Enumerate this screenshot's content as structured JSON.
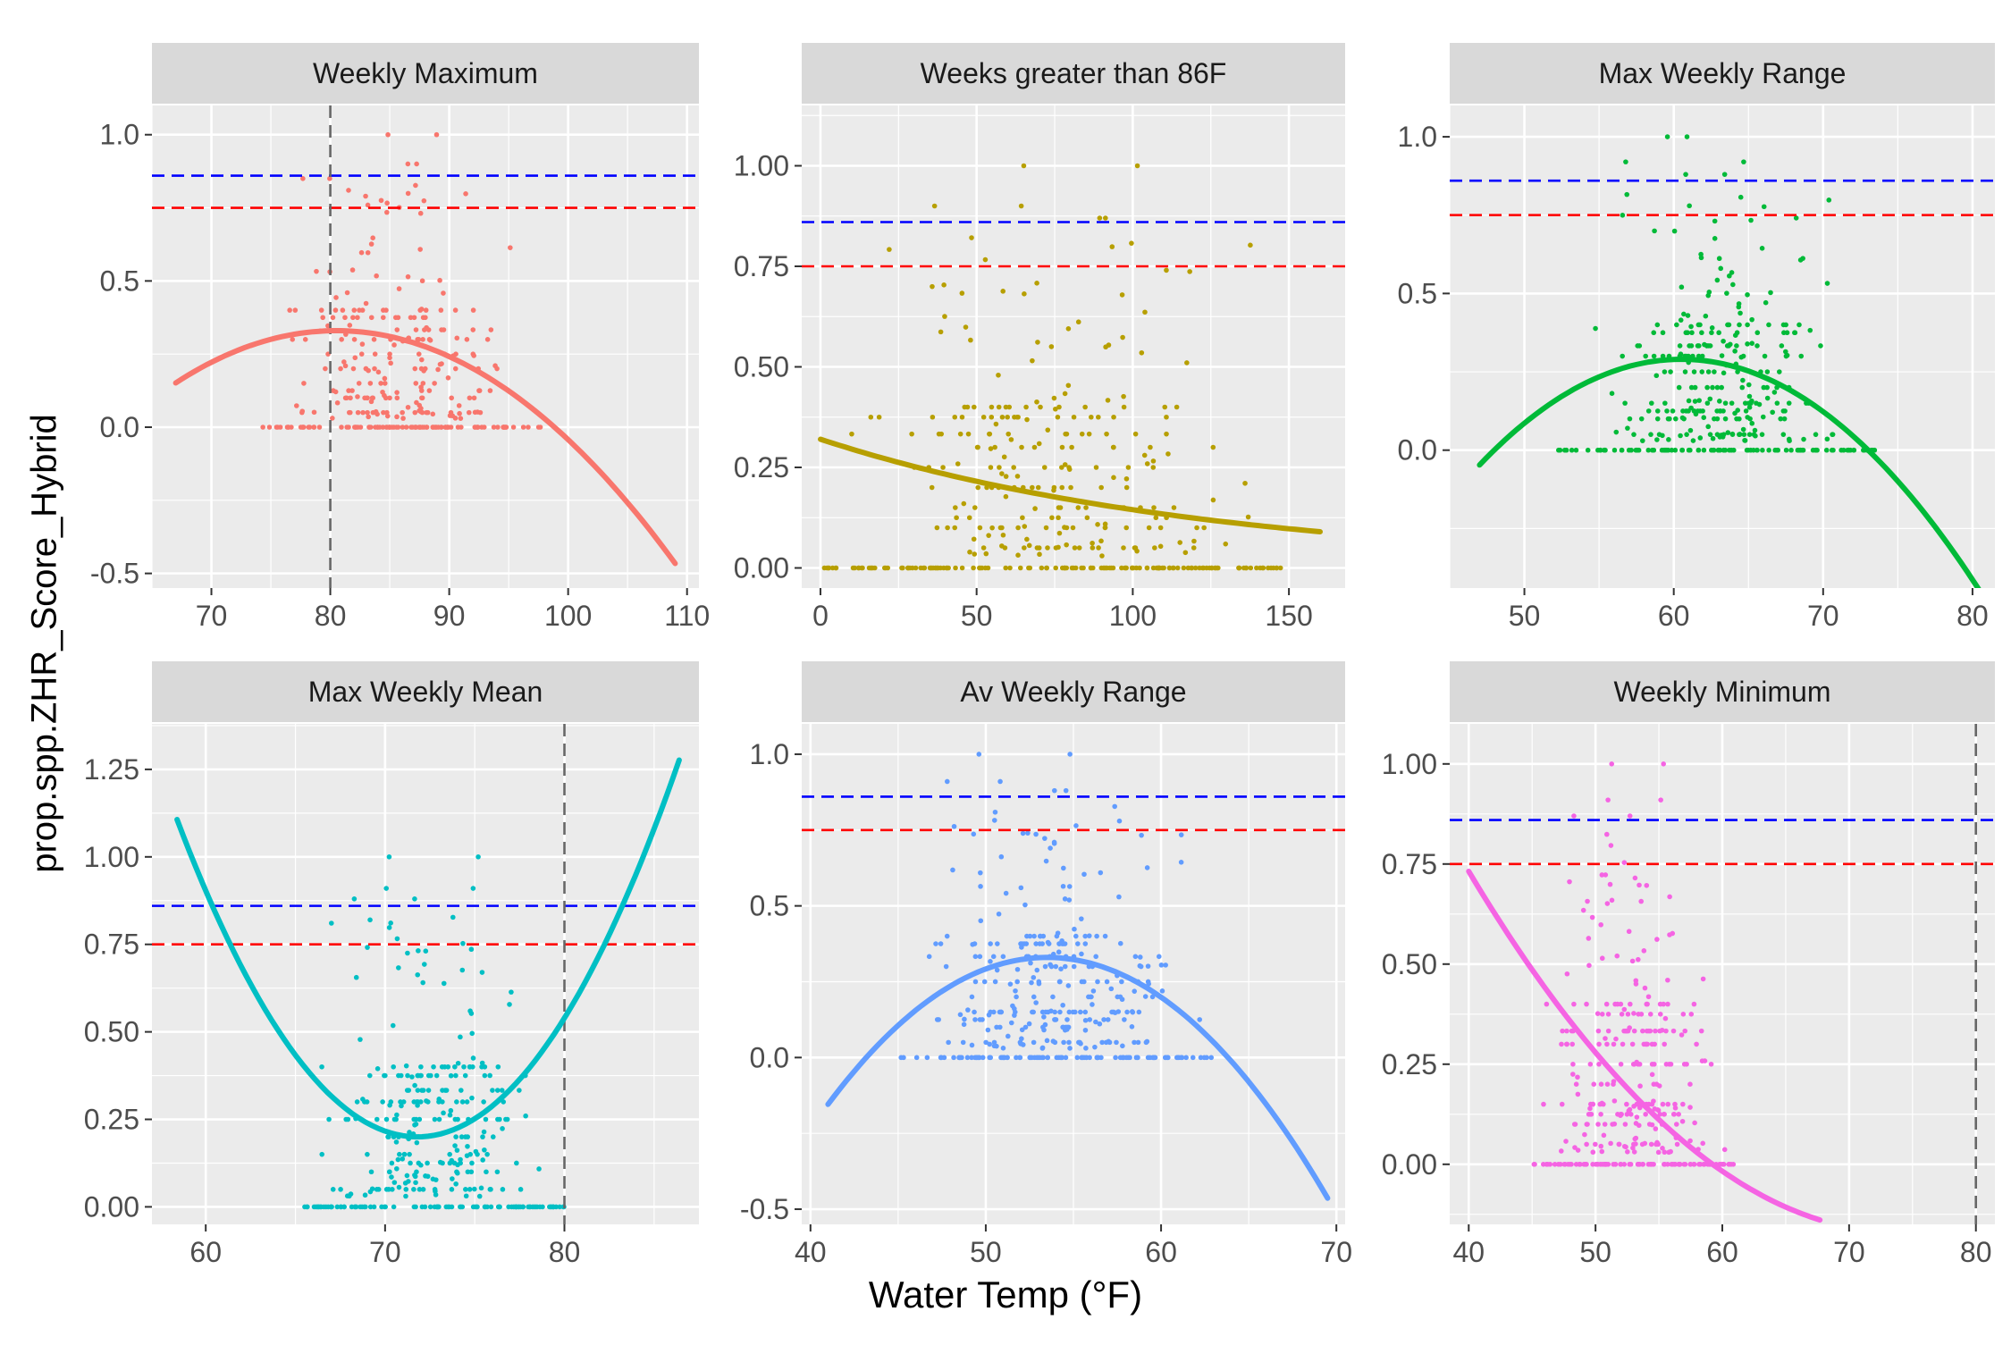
{
  "figure": {
    "xlabel": "Water Temp (°F)",
    "ylabel": "prop.spp.ZHR_Score_Hybrid"
  },
  "reference_lines": {
    "blue": 0.86,
    "red": 0.75
  },
  "colors": {
    "panel_bg": "#EBEBEB",
    "grid": "#FFFFFF",
    "strip_bg": "#D9D9D9",
    "blue_line": "#0000FF",
    "red_line": "#FF0000",
    "vline": "#666666",
    "tick_text": "#4D4D4D"
  },
  "chart_data": [
    {
      "type": "scatter",
      "title": "Weekly Maximum",
      "color": "#F8766D",
      "xlim": [
        65,
        111
      ],
      "ylim": [
        -0.55,
        1.1
      ],
      "xticks": [
        70,
        80,
        90,
        100,
        110
      ],
      "yticks": [
        -0.5,
        0.0,
        0.5,
        1.0
      ],
      "ytick_labels": [
        "-0.5",
        "0.0",
        "0.5",
        "1.0"
      ],
      "vline": 80,
      "fit": {
        "kind": "poly2",
        "vertex_x": 80.5,
        "vertex_y": 0.33,
        "a": -0.00098,
        "x_range": [
          67,
          109
        ]
      },
      "points": {
        "seed": 11,
        "x_range": [
          74,
          98
        ],
        "n_zero": 95,
        "n_pos": 210,
        "y_max": 1.0,
        "max_values": [
          1.0,
          0.9,
          0.85
        ]
      }
    },
    {
      "type": "scatter",
      "title": "Weeks greater than 86F",
      "color": "#B79F00",
      "xlim": [
        -6,
        168
      ],
      "ylim": [
        -0.05,
        1.15
      ],
      "xticks": [
        0,
        50,
        100,
        150
      ],
      "yticks": [
        0.0,
        0.25,
        0.5,
        0.75,
        1.0
      ],
      "ytick_labels": [
        "0.00",
        "0.25",
        "0.50",
        "0.75",
        "1.00"
      ],
      "fit": {
        "kind": "exp",
        "x0": 0,
        "y0": 0.32,
        "x1": 160,
        "y1": 0.09,
        "x_range": [
          0,
          160
        ]
      },
      "points": {
        "seed": 23,
        "x_range": [
          0,
          148
        ],
        "n_zero": 140,
        "n_pos": 230,
        "y_max": 1.0,
        "max_values": [
          1.0,
          0.9,
          0.87
        ]
      }
    },
    {
      "type": "scatter",
      "title": "Max Weekly Range",
      "color": "#00BA38",
      "xlim": [
        45,
        81.5
      ],
      "ylim": [
        -0.44,
        1.1
      ],
      "xticks": [
        50,
        60,
        70,
        80
      ],
      "yticks": [
        0.0,
        0.5,
        1.0
      ],
      "ytick_labels": [
        "0.0",
        "0.5",
        "1.0"
      ],
      "fit": {
        "kind": "poly2",
        "vertex_x": 60.5,
        "vertex_y": 0.29,
        "a": -0.00185,
        "x_range": [
          47,
          80.5
        ]
      },
      "points": {
        "seed": 37,
        "x_range": [
          52,
          73.5
        ],
        "n_zero": 95,
        "n_pos": 260,
        "y_max": 1.0,
        "max_values": [
          1.0,
          0.92,
          0.88
        ]
      }
    },
    {
      "type": "scatter",
      "title": "Max Weekly Mean",
      "color": "#00BFC4",
      "xlim": [
        57,
        87.5
      ],
      "ylim": [
        -0.05,
        1.38
      ],
      "xticks": [
        60,
        70,
        80
      ],
      "yticks": [
        0.0,
        0.25,
        0.5,
        0.75,
        1.0,
        1.25
      ],
      "ytick_labels": [
        "0.00",
        "0.25",
        "0.50",
        "0.75",
        "1.00",
        "1.25"
      ],
      "vline": 80,
      "fit": {
        "kind": "poly2",
        "vertex_x": 71.8,
        "vertex_y": 0.2,
        "a": 0.00505,
        "x_range": [
          58.4,
          86.4
        ]
      },
      "points": {
        "seed": 53,
        "x_range": [
          65,
          80
        ],
        "n_zero": 95,
        "n_pos": 250,
        "y_max": 1.0,
        "max_values": [
          1.0,
          0.91,
          0.88
        ]
      }
    },
    {
      "type": "scatter",
      "title": "Av Weekly Range",
      "color": "#619CFF",
      "xlim": [
        39.5,
        70.5
      ],
      "ylim": [
        -0.55,
        1.1
      ],
      "xticks": [
        40,
        50,
        60,
        70
      ],
      "yticks": [
        -0.5,
        0.0,
        0.5,
        1.0
      ],
      "ytick_labels": [
        "-0.5",
        "0.0",
        "0.5",
        "1.0"
      ],
      "fit": {
        "kind": "poly2",
        "vertex_x": 53.5,
        "vertex_y": 0.33,
        "a": -0.0031,
        "x_range": [
          41,
          69.5
        ]
      },
      "points": {
        "seed": 71,
        "x_range": [
          45,
          63.2
        ],
        "n_zero": 100,
        "n_pos": 270,
        "y_max": 1.0,
        "max_values": [
          1.0,
          0.91,
          0.88
        ]
      }
    },
    {
      "type": "scatter",
      "title": "Weekly Minimum",
      "color": "#F564E3",
      "xlim": [
        38.5,
        81.5
      ],
      "ylim": [
        -0.15,
        1.1
      ],
      "xticks": [
        40,
        50,
        60,
        70,
        80
      ],
      "yticks": [
        0.0,
        0.25,
        0.5,
        0.75,
        1.0
      ],
      "ytick_labels": [
        "0.00",
        "0.25",
        "0.50",
        "0.75",
        "1.00"
      ],
      "vline": 80,
      "fit": {
        "kind": "poly2",
        "vertex_x": 74.0,
        "vertex_y": -0.17,
        "a": 0.00078,
        "x_range": [
          40,
          67.7
        ]
      },
      "points": {
        "seed": 97,
        "x_range": [
          45,
          61
        ],
        "n_zero": 95,
        "n_pos": 250,
        "y_max": 1.0,
        "max_values": [
          1.0,
          0.91,
          0.87
        ]
      }
    }
  ]
}
